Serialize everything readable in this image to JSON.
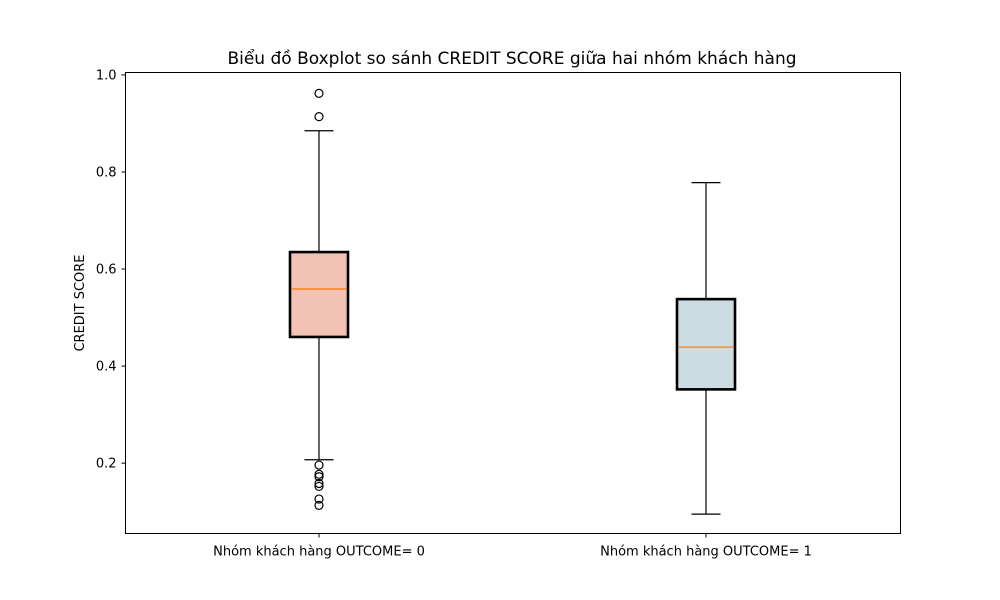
{
  "chart_data": {
    "type": "boxplot",
    "title": "Biểu đồ Boxplot so sánh CREDIT SCORE giữa hai nhóm khách hàng",
    "xlabel": "",
    "ylabel": "CREDIT SCORE",
    "ylim": [
      0.055,
      1.005
    ],
    "yticks": [
      0.2,
      0.4,
      0.6,
      0.8,
      1.0
    ],
    "ytick_labels": [
      "0.2",
      "0.4",
      "0.6",
      "0.8",
      "1.0"
    ],
    "grid": false,
    "categories": [
      "Nhóm khách hàng OUTCOME= 0",
      "Nhóm khách hàng OUTCOME= 1"
    ],
    "boxes": [
      {
        "category": "Nhóm khách hàng OUTCOME= 0",
        "whisker_low": 0.207,
        "q1": 0.46,
        "median": 0.559,
        "q3": 0.635,
        "whisker_high": 0.885,
        "outliers": [
          0.962,
          0.914,
          0.196,
          0.177,
          0.172,
          0.158,
          0.152,
          0.126,
          0.113
        ],
        "fill_color": "#f2c2b4"
      },
      {
        "category": "Nhóm khách hàng OUTCOME= 1",
        "whisker_low": 0.095,
        "q1": 0.352,
        "median": 0.439,
        "q3": 0.538,
        "whisker_high": 0.778,
        "outliers": [],
        "fill_color": "#cbdce2"
      }
    ],
    "median_color": "#ff7f0e"
  }
}
